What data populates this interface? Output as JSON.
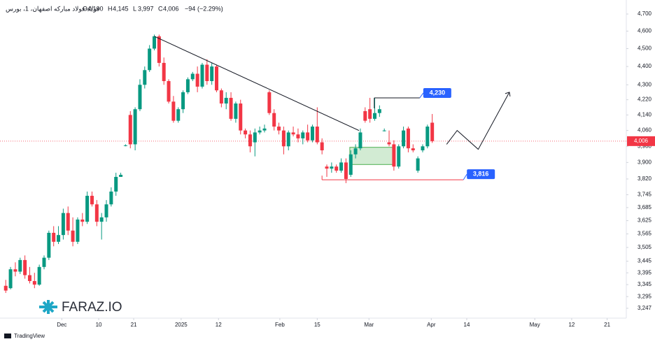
{
  "chart_data": {
    "type": "candlestick",
    "title": "فولاد-فولاد مبارکه اصفهان، 1، بورس",
    "ohlc_legend": [
      {
        "key": "O",
        "value": 4100,
        "label": "4,100"
      },
      {
        "key": "H",
        "value": 4145,
        "label": "4,145"
      },
      {
        "key": "L",
        "value": 3997,
        "label": "3,997"
      },
      {
        "key": "C",
        "value": 4006,
        "label": "4,006"
      }
    ],
    "change": {
      "value": -94,
      "label": "−94"
    },
    "change_pct": {
      "value": -2.29,
      "label": "(−2.29%)"
    },
    "up_color": "#089981",
    "down_color": "#f23645",
    "x": [
      0,
      1,
      2,
      3,
      4,
      5,
      6,
      7,
      8,
      9,
      10,
      11,
      12,
      13,
      14,
      15,
      16,
      17,
      18,
      19,
      20,
      21,
      22,
      23,
      24,
      25,
      26,
      27,
      28,
      29,
      30,
      31,
      32,
      33,
      34,
      35,
      36,
      37,
      38,
      39,
      40,
      41,
      42,
      43,
      44,
      45,
      46,
      47,
      48,
      49,
      50,
      51,
      52,
      53,
      54,
      55,
      56,
      57,
      58,
      59,
      60,
      61,
      62,
      63,
      64,
      65,
      66,
      67,
      68,
      69,
      70,
      71,
      72,
      73,
      74,
      75,
      76,
      77,
      78,
      79,
      80,
      81,
      82,
      83,
      84,
      85,
      86,
      87,
      88,
      89
    ],
    "open": [
      3340,
      3330,
      3410,
      3400,
      3450,
      3385,
      3360,
      3345,
      3420,
      3460,
      3570,
      3530,
      3560,
      3660,
      3580,
      3530,
      3630,
      3620,
      3740,
      3700,
      3620,
      3640,
      3700,
      3760,
      3830,
      3985,
      4140,
      3990,
      4170,
      4300,
      4380,
      4500,
      4570,
      4420,
      4320,
      4210,
      4110,
      4170,
      4260,
      4330,
      4360,
      4290,
      4410,
      4320,
      4400,
      4270,
      4200,
      4230,
      4120,
      4200,
      4060,
      4040,
      4000,
      4050,
      4060,
      4260,
      4150,
      4080,
      4060,
      3980,
      4050,
      4040,
      4020,
      4050,
      4010,
      4080,
      4000,
      3880,
      3870,
      3880,
      3860,
      3900,
      3840,
      3940,
      3970,
      4160,
      4170,
      4120,
      4150,
      4060,
      4000,
      3990,
      3880,
      3980,
      4070,
      3970,
      3860,
      3960,
      3980,
      4100
    ],
    "high": [
      3365,
      3420,
      3440,
      3460,
      3470,
      3420,
      3395,
      3430,
      3470,
      3580,
      3600,
      3600,
      3680,
      3690,
      3640,
      3640,
      3660,
      3760,
      3760,
      3720,
      3660,
      3720,
      3780,
      3850,
      3850,
      3990,
      4160,
      4180,
      4330,
      4400,
      4520,
      4580,
      4580,
      4450,
      4330,
      4240,
      4180,
      4270,
      4340,
      4370,
      4400,
      4420,
      4440,
      4420,
      4410,
      4280,
      4260,
      4260,
      4210,
      4220,
      4070,
      4060,
      4070,
      4080,
      4090,
      4270,
      4170,
      4100,
      4080,
      4060,
      4080,
      4070,
      4060,
      4090,
      4090,
      4180,
      4020,
      3890,
      3900,
      3890,
      3920,
      3920,
      3960,
      3990,
      4070,
      4180,
      4230,
      4230,
      4190,
      4070,
      4060,
      4010,
      3990,
      4080,
      4080,
      3990,
      3930,
      3990,
      4090,
      4145
    ],
    "low": [
      3310,
      3325,
      3380,
      3390,
      3370,
      3350,
      3330,
      3340,
      3410,
      3450,
      3510,
      3520,
      3540,
      3560,
      3510,
      3520,
      3600,
      3610,
      3690,
      3600,
      3540,
      3620,
      3690,
      3740,
      3830,
      3980,
      3970,
      3960,
      4160,
      4280,
      4370,
      4490,
      4400,
      4300,
      4200,
      4100,
      4100,
      4150,
      4250,
      4320,
      4260,
      4280,
      4300,
      4300,
      4260,
      4180,
      4170,
      4110,
      4100,
      4040,
      4020,
      3950,
      3930,
      4040,
      4050,
      4140,
      4060,
      4040,
      3940,
      3960,
      4030,
      4000,
      3990,
      4000,
      4000,
      3990,
      3940,
      3830,
      3850,
      3850,
      3850,
      3800,
      3830,
      3920,
      3960,
      4100,
      4100,
      4110,
      4130,
      4055,
      3980,
      3860,
      3870,
      3970,
      3950,
      3950,
      3850,
      3950,
      3970,
      3997
    ],
    "close": [
      3320,
      3410,
      3400,
      3450,
      3385,
      3360,
      3345,
      3420,
      3460,
      3570,
      3530,
      3560,
      3660,
      3580,
      3530,
      3630,
      3620,
      3740,
      3700,
      3620,
      3640,
      3700,
      3760,
      3830,
      3840,
      3985,
      3990,
      4170,
      4300,
      4380,
      4500,
      4570,
      4420,
      4320,
      4210,
      4110,
      4170,
      4260,
      4330,
      4360,
      4290,
      4410,
      4320,
      4400,
      4270,
      4200,
      4230,
      4120,
      4200,
      4060,
      4040,
      3980,
      4050,
      4060,
      4070,
      4150,
      4080,
      4060,
      3980,
      4050,
      4040,
      4020,
      4050,
      4010,
      4080,
      4000,
      3960,
      3870,
      3880,
      3860,
      3900,
      3820,
      3940,
      3970,
      4050,
      4110,
      4120,
      4150,
      4170,
      4060,
      3990,
      3880,
      3980,
      4060,
      3970,
      3960,
      3920,
      3980,
      4080,
      4006
    ],
    "xlim": [
      -1.2,
      129.5
    ],
    "ylim": [
      3207,
      4750
    ],
    "log_y": true,
    "grid": false,
    "xticks": [
      {
        "value": 11.7,
        "label": "Dec"
      },
      {
        "value": 19.4,
        "label": "10"
      },
      {
        "value": 26.7,
        "label": "21"
      },
      {
        "value": 36.6,
        "label": "2025"
      },
      {
        "value": 44.4,
        "label": "12"
      },
      {
        "value": 57.2,
        "label": "Feb"
      },
      {
        "value": 65,
        "label": "15"
      },
      {
        "value": 75.8,
        "label": "Mar"
      },
      {
        "value": 88.8,
        "label": "Apr"
      },
      {
        "value": 96.2,
        "label": "14"
      },
      {
        "value": 110.4,
        "label": "May"
      },
      {
        "value": 118.1,
        "label": "12"
      },
      {
        "value": 125.5,
        "label": "21"
      }
    ],
    "yticks": [
      {
        "value": 4700,
        "label": "4,700"
      },
      {
        "value": 4600,
        "label": "4,600"
      },
      {
        "value": 4500,
        "label": "4,500"
      },
      {
        "value": 4400,
        "label": "4,400"
      },
      {
        "value": 4300,
        "label": "4,300"
      },
      {
        "value": 4220,
        "label": "4,220"
      },
      {
        "value": 4140,
        "label": "4,140"
      },
      {
        "value": 4060,
        "label": "4,060"
      },
      {
        "value": 3980,
        "label": "3,980"
      },
      {
        "value": 3900,
        "label": "3,900"
      },
      {
        "value": 3820,
        "label": "3,820"
      },
      {
        "value": 3745,
        "label": "3,745"
      },
      {
        "value": 3685,
        "label": "3,685"
      },
      {
        "value": 3625,
        "label": "3,625"
      },
      {
        "value": 3565,
        "label": "3,565"
      },
      {
        "value": 3505,
        "label": "3,505"
      },
      {
        "value": 3445,
        "label": "3,445"
      },
      {
        "value": 3395,
        "label": "3,395"
      },
      {
        "value": 3345,
        "label": "3,345"
      },
      {
        "value": 3295,
        "label": "3,295"
      },
      {
        "value": 3247,
        "label": "3,247"
      }
    ],
    "last_price": {
      "value": 4006,
      "label": "4,006"
    },
    "trendline": {
      "x": [
        31,
        73.7
      ],
      "y": [
        4570,
        4060
      ]
    },
    "levels": [
      {
        "x": [
          76.9,
          86.4
        ],
        "value": 4230,
        "label": "4,230"
      },
      {
        "x": [
          66,
          95.5
        ],
        "value": 3816,
        "label": "3,816"
      }
    ],
    "zone": {
      "x": [
        71.8,
        81
      ],
      "y": [
        3890,
        3975
      ]
    },
    "projection": {
      "x": [
        92,
        94.2,
        98.6,
        105.1
      ],
      "y": [
        3990,
        4060,
        3965,
        4260
      ]
    }
  },
  "watermark": {
    "brand": "FARAZ.IO",
    "footer": "TradingView"
  }
}
